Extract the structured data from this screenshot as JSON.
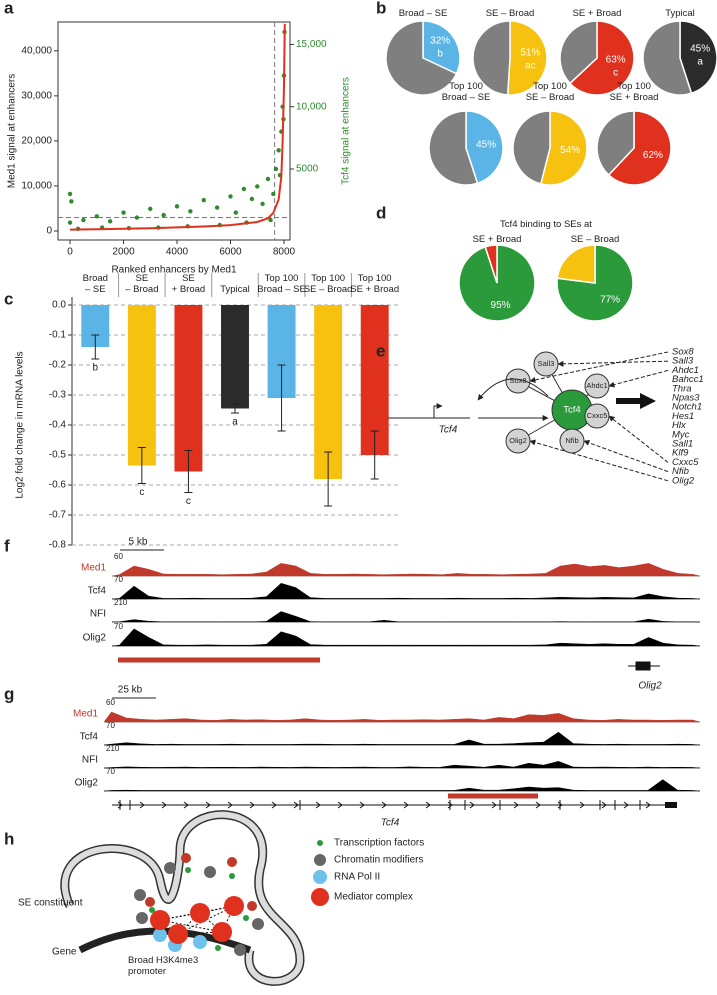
{
  "chart_data": [
    {
      "type": "scatter",
      "panel_label": "a",
      "x_label": "Ranked enhancers by Med1",
      "y_label": "Med1 signal at enhancers",
      "y2_label": "Tcf4 signal at enhancers",
      "xlim": [
        -450,
        8225
      ],
      "ylim": [
        -2000,
        46400
      ],
      "y2lim": [
        -700,
        16800
      ],
      "xticks": [
        0,
        2000,
        4000,
        6000,
        8000
      ],
      "yticks": [
        0,
        {
          "value": 10000,
          "label": "10,000"
        },
        {
          "value": 20000,
          "label": "20,000"
        },
        {
          "value": 30000,
          "label": "30,000"
        },
        {
          "value": 40000,
          "label": "40,000"
        }
      ],
      "y2ticks": [
        5000,
        {
          "value": 10000,
          "label": "10,000"
        },
        {
          "value": 15000,
          "label": "15,000"
        }
      ],
      "threshold_x": 7650,
      "threshold_y": 3000,
      "series": [
        {
          "color": "#2e8b2e",
          "axis": "y2",
          "x": [
            0,
            50,
            0,
            500,
            1000,
            1500,
            2000,
            2500,
            3000,
            3500,
            4000,
            4500,
            5000,
            5500,
            6000,
            6200,
            6500,
            6800,
            7000,
            7200,
            7400,
            7600,
            7700,
            7800,
            7900,
            7950,
            8000,
            8020,
            7980,
            7850,
            300,
            1200,
            2200,
            3300,
            4400,
            5600,
            6600,
            7500
          ],
          "values": [
            3000,
            2400,
            700,
            900,
            1200,
            800,
            1500,
            1100,
            1800,
            1300,
            2000,
            1600,
            2500,
            1900,
            2800,
            1500,
            3400,
            2600,
            3600,
            2200,
            4200,
            3000,
            5000,
            6500,
            8000,
            10000,
            12500,
            16000,
            9000,
            4500,
            200,
            300,
            250,
            300,
            400,
            500,
            700,
            900
          ]
        },
        {
          "color": "#e0301e",
          "x": [
            0,
            1000,
            2000,
            3000,
            4000,
            5000,
            6000,
            7000,
            7400,
            7600,
            7800,
            7900,
            7950,
            8000,
            8030
          ],
          "values": [
            300,
            400,
            500,
            600,
            800,
            1000,
            1300,
            2000,
            2800,
            4000,
            7000,
            12000,
            20000,
            32000,
            46000
          ]
        }
      ]
    },
    {
      "type": "pie",
      "panel_label": "b",
      "pies": [
        {
          "title": "Broad – SE",
          "values": [
            32,
            68
          ],
          "colors": [
            "#5ab4e5",
            "#7f7f7f"
          ],
          "value_labels": [
            "32%",
            null
          ],
          "annotation": "b"
        },
        {
          "title": "SE – Broad",
          "values": [
            51,
            49
          ],
          "colors": [
            "#f7c10f",
            "#7f7f7f"
          ],
          "value_labels": [
            "51%",
            null
          ],
          "annotation": "ac"
        },
        {
          "title": "SE + Broad",
          "values": [
            63,
            37
          ],
          "colors": [
            "#e0301e",
            "#7f7f7f"
          ],
          "value_labels": [
            "63%",
            null
          ],
          "annotation": "c"
        },
        {
          "title": "Typical",
          "values": [
            45,
            55
          ],
          "colors": [
            "#2b2b2b",
            "#7f7f7f"
          ],
          "value_labels": [
            "45%",
            null
          ],
          "annotation": "a"
        },
        {
          "title": "Top 100\nBroad – SE",
          "values": [
            45,
            55
          ],
          "colors": [
            "#5ab4e5",
            "#7f7f7f"
          ],
          "value_labels": [
            "45%",
            null
          ]
        },
        {
          "title": "Top 100\nSE – Broad",
          "values": [
            54,
            46
          ],
          "colors": [
            "#f7c10f",
            "#7f7f7f"
          ],
          "value_labels": [
            "54%",
            null
          ]
        },
        {
          "title": "Top 100\nSE + Broad",
          "values": [
            62,
            38
          ],
          "colors": [
            "#e0301e",
            "#7f7f7f"
          ],
          "value_labels": [
            "62%",
            null
          ]
        }
      ]
    },
    {
      "type": "bar",
      "panel_label": "c",
      "y_label": "Log2 fold change in mRNA levels",
      "categories": [
        "Broad\n– SE",
        "SE\n– Broad",
        "SE\n+ Broad",
        "Typical",
        "Top 100\nBroad – SE",
        "Top 100\nSE – Broad",
        "Top 100\nSE + Broad"
      ],
      "values": [
        -0.14,
        -0.535,
        -0.555,
        -0.345,
        -0.31,
        -0.58,
        -0.5
      ],
      "errors": [
        0.04,
        0.06,
        0.07,
        0.015,
        0.11,
        0.09,
        0.08
      ],
      "colors": [
        "#5ab4e5",
        "#f7c10f",
        "#e0301e",
        "#2b2b2b",
        "#5ab4e5",
        "#f7c10f",
        "#e0301e"
      ],
      "annotations": [
        "b",
        "c",
        "c",
        "a",
        null,
        null,
        null
      ],
      "ylim": [
        -0.8,
        0
      ],
      "grid": true,
      "yticks": [
        {
          "value": 0,
          "label": "0.0"
        },
        -0.1,
        -0.2,
        -0.3,
        -0.4,
        -0.5,
        -0.6,
        -0.7,
        -0.8
      ]
    },
    {
      "type": "pie",
      "panel_label": "d",
      "title": "Tcf4 binding to SEs at",
      "pies": [
        {
          "title": "SE + Broad",
          "values": [
            95,
            5
          ],
          "colors": [
            "#2a9a3a",
            "#e0301e"
          ],
          "value_labels": [
            "95%",
            null
          ]
        },
        {
          "title": "SE – Broad",
          "values": [
            77,
            23
          ],
          "colors": [
            "#2a9a3a",
            "#f7c10f"
          ],
          "value_labels": [
            "77%",
            null
          ]
        }
      ]
    }
  ],
  "diagrams": [
    {
      "panel_label": "e",
      "gene": "Tcf4",
      "nodes": [
        "Tcf4",
        "Sox8",
        "Sall3",
        "Ahdc1",
        "Cxxc5",
        "Nfib",
        "Olig2"
      ],
      "targets": [
        "Sox8",
        "Sall3",
        "Ahdc1",
        "Bahcc1",
        "Thra",
        "Npas3",
        "Notch1",
        "Hes1",
        "Hlx",
        "Myc",
        "Sall1",
        "Klf9",
        "Cxxc5",
        "Nfib",
        "Olig2"
      ]
    },
    {
      "panel_label": "f",
      "scale_bar": "5 kb",
      "gene": "Olig2",
      "tracks": [
        {
          "name": "Med1",
          "scale": 60,
          "color": "#c0392b",
          "signal": [
            4,
            30,
            20,
            6,
            5,
            5,
            5,
            4,
            5,
            6,
            12,
            38,
            30,
            8,
            5,
            5,
            6,
            5,
            4,
            5,
            6,
            5,
            4,
            8,
            5,
            5,
            4,
            5,
            6,
            8,
            30,
            36,
            28,
            32,
            25,
            30,
            38,
            20,
            8,
            5
          ]
        },
        {
          "name": "Tcf4",
          "scale": 70,
          "color": "#000000",
          "signal": [
            2,
            45,
            10,
            2,
            2,
            3,
            2,
            2,
            2,
            3,
            8,
            55,
            40,
            5,
            2,
            2,
            2,
            2,
            2,
            3,
            2,
            2,
            2,
            3,
            2,
            2,
            2,
            3,
            2,
            4,
            6,
            5,
            4,
            6,
            5,
            4,
            18,
            8,
            3,
            2
          ]
        },
        {
          "name": "NFI",
          "scale": 210,
          "color": "#000000",
          "signal": [
            2,
            25,
            8,
            2,
            2,
            2,
            2,
            2,
            2,
            2,
            6,
            110,
            60,
            4,
            2,
            2,
            2,
            2,
            18,
            2,
            2,
            2,
            2,
            2,
            2,
            2,
            2,
            2,
            2,
            2,
            4,
            2,
            2,
            2,
            2,
            2,
            30,
            6,
            2,
            2
          ]
        },
        {
          "name": "Olig2",
          "scale": 70,
          "color": "#000000",
          "signal": [
            3,
            60,
            30,
            4,
            3,
            3,
            4,
            3,
            3,
            3,
            6,
            50,
            35,
            5,
            3,
            3,
            3,
            3,
            3,
            3,
            3,
            3,
            3,
            3,
            3,
            3,
            3,
            3,
            3,
            4,
            10,
            8,
            6,
            8,
            6,
            6,
            30,
            10,
            4,
            3
          ]
        }
      ]
    },
    {
      "panel_label": "g",
      "scale_bar": "25 kb",
      "gene": "Tcf4",
      "tracks": [
        {
          "name": "Med1",
          "scale": 60,
          "color": "#c0392b",
          "signal": [
            30,
            12,
            8,
            6,
            8,
            10,
            6,
            5,
            8,
            6,
            7,
            5,
            6,
            10,
            6,
            5,
            6,
            8,
            5,
            6,
            6,
            7,
            6,
            8,
            10,
            6,
            14,
            10,
            22,
            20,
            26,
            10,
            6,
            5,
            8,
            6,
            6,
            5,
            6,
            6
          ]
        },
        {
          "name": "Tcf4",
          "scale": 70,
          "color": "#000000",
          "signal": [
            3,
            8,
            4,
            2,
            3,
            2,
            2,
            2,
            3,
            2,
            2,
            2,
            2,
            3,
            3,
            2,
            2,
            3,
            2,
            2,
            2,
            2,
            2,
            2,
            18,
            3,
            3,
            5,
            8,
            10,
            45,
            5,
            3,
            2,
            3,
            2,
            2,
            2,
            3,
            2
          ]
        },
        {
          "name": "NFI",
          "scale": 210,
          "color": "#000000",
          "signal": [
            5,
            12,
            8,
            6,
            8,
            10,
            6,
            8,
            8,
            6,
            10,
            8,
            6,
            10,
            8,
            6,
            8,
            10,
            6,
            6,
            12,
            8,
            6,
            30,
            20,
            8,
            30,
            10,
            50,
            30,
            70,
            10,
            8,
            10,
            8,
            6,
            10,
            6,
            8,
            6
          ]
        },
        {
          "name": "Olig2",
          "scale": 70,
          "color": "#000000",
          "signal": [
            2,
            3,
            2,
            2,
            2,
            2,
            2,
            2,
            2,
            2,
            2,
            2,
            2,
            2,
            2,
            2,
            2,
            2,
            2,
            2,
            2,
            2,
            2,
            2,
            10,
            3,
            3,
            8,
            14,
            10,
            12,
            3,
            2,
            2,
            2,
            2,
            2,
            40,
            3,
            2
          ]
        }
      ]
    },
    {
      "panel_label": "h",
      "legend": [
        "Transcription factors",
        "Chromatin modifiers",
        "RNA Pol II",
        "Mediator complex"
      ],
      "labels": [
        "SE constituent",
        "Gene",
        "Broad H3K4me3\npromoter"
      ]
    }
  ]
}
